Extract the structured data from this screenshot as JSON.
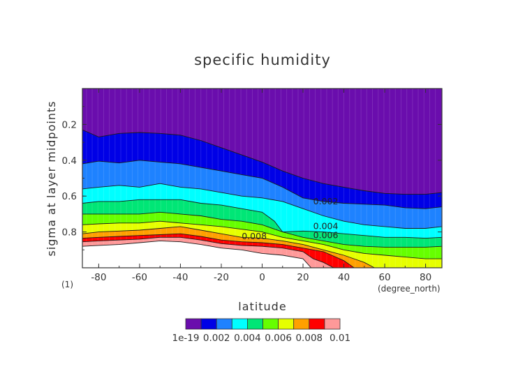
{
  "chart_data": {
    "type": "contour",
    "title": "specific humidity",
    "xlabel": "latitude",
    "ylabel": "sigma at layer midpoints",
    "x_units": "(degree_north)",
    "y_units": "(1)",
    "xlim": [
      -88,
      88
    ],
    "ylim": [
      0.0,
      1.0
    ],
    "y_inverted": true,
    "x_ticks": [
      -80,
      -60,
      -40,
      -20,
      0,
      20,
      40,
      60,
      80
    ],
    "y_ticks": [
      0.2,
      0.4,
      0.6,
      0.8
    ],
    "x_tick_labels": [
      "-80",
      "-60",
      "-40",
      "-20",
      "0",
      "20",
      "40",
      "60",
      "80"
    ],
    "y_tick_labels": [
      "0.2",
      "0.4",
      "0.6",
      "0.8"
    ],
    "contour_levels": [
      1e-19,
      0.001,
      0.002,
      0.003,
      0.004,
      0.005,
      0.006,
      0.007,
      0.008,
      0.009,
      0.01
    ],
    "colors": [
      "#6a0dad",
      "#0000e6",
      "#1e82ff",
      "#00ffff",
      "#00e676",
      "#66ff00",
      "#e6ff00",
      "#ffa000",
      "#ff0000",
      "#ff9999"
    ],
    "colorbar_labels": [
      "1e-19",
      "0.002",
      "0.004",
      "0.006",
      "0.008",
      "0.01"
    ],
    "contour_labels": [
      {
        "text": "0.002",
        "lat": 25,
        "sigma": 0.645
      },
      {
        "text": "0.004",
        "lat": 25,
        "sigma": 0.785
      },
      {
        "text": "0.006",
        "lat": 25,
        "sigma": 0.835
      },
      {
        "text": "0.008",
        "lat": -10,
        "sigma": 0.84
      }
    ],
    "contour_lines": [
      {
        "level": 0.001,
        "points": [
          [
            -88,
            0.23
          ],
          [
            -80,
            0.27
          ],
          [
            -70,
            0.25
          ],
          [
            -60,
            0.245
          ],
          [
            -50,
            0.25
          ],
          [
            -40,
            0.26
          ],
          [
            -30,
            0.29
          ],
          [
            -20,
            0.33
          ],
          [
            -10,
            0.37
          ],
          [
            0,
            0.41
          ],
          [
            10,
            0.46
          ],
          [
            20,
            0.5
          ],
          [
            30,
            0.53
          ],
          [
            40,
            0.55
          ],
          [
            50,
            0.57
          ],
          [
            60,
            0.585
          ],
          [
            70,
            0.59
          ],
          [
            80,
            0.59
          ],
          [
            88,
            0.58
          ]
        ]
      },
      {
        "level": 0.002,
        "points": [
          [
            -88,
            0.42
          ],
          [
            -80,
            0.405
          ],
          [
            -70,
            0.415
          ],
          [
            -60,
            0.4
          ],
          [
            -50,
            0.41
          ],
          [
            -40,
            0.42
          ],
          [
            -30,
            0.44
          ],
          [
            -20,
            0.46
          ],
          [
            -10,
            0.48
          ],
          [
            0,
            0.5
          ],
          [
            10,
            0.55
          ],
          [
            20,
            0.61
          ],
          [
            30,
            0.63
          ],
          [
            40,
            0.64
          ],
          [
            50,
            0.645
          ],
          [
            60,
            0.65
          ],
          [
            70,
            0.665
          ],
          [
            80,
            0.67
          ],
          [
            88,
            0.66
          ]
        ]
      },
      {
        "level": 0.003,
        "points": [
          [
            -88,
            0.56
          ],
          [
            -80,
            0.55
          ],
          [
            -70,
            0.54
          ],
          [
            -60,
            0.55
          ],
          [
            -50,
            0.53
          ],
          [
            -40,
            0.55
          ],
          [
            -30,
            0.56
          ],
          [
            -20,
            0.58
          ],
          [
            -10,
            0.6
          ],
          [
            0,
            0.61
          ],
          [
            10,
            0.63
          ],
          [
            20,
            0.67
          ],
          [
            30,
            0.71
          ],
          [
            40,
            0.74
          ],
          [
            50,
            0.76
          ],
          [
            60,
            0.77
          ],
          [
            70,
            0.78
          ],
          [
            80,
            0.78
          ],
          [
            88,
            0.77
          ]
        ]
      },
      {
        "level": 0.004,
        "points": [
          [
            -88,
            0.64
          ],
          [
            -80,
            0.63
          ],
          [
            -70,
            0.63
          ],
          [
            -60,
            0.62
          ],
          [
            -50,
            0.62
          ],
          [
            -40,
            0.62
          ],
          [
            -30,
            0.64
          ],
          [
            -20,
            0.65
          ],
          [
            -10,
            0.67
          ],
          [
            0,
            0.69
          ],
          [
            6,
            0.74
          ],
          [
            10,
            0.8
          ],
          [
            20,
            0.795
          ],
          [
            30,
            0.8
          ],
          [
            40,
            0.81
          ],
          [
            50,
            0.82
          ],
          [
            60,
            0.83
          ],
          [
            70,
            0.83
          ],
          [
            80,
            0.835
          ],
          [
            88,
            0.83
          ]
        ]
      },
      {
        "level": 0.005,
        "points": [
          [
            -88,
            0.7
          ],
          [
            -80,
            0.7
          ],
          [
            -70,
            0.7
          ],
          [
            -60,
            0.7
          ],
          [
            -50,
            0.69
          ],
          [
            -40,
            0.7
          ],
          [
            -30,
            0.71
          ],
          [
            -20,
            0.73
          ],
          [
            -10,
            0.74
          ],
          [
            0,
            0.76
          ],
          [
            10,
            0.8
          ],
          [
            20,
            0.83
          ],
          [
            30,
            0.85
          ],
          [
            40,
            0.87
          ],
          [
            50,
            0.88
          ],
          [
            60,
            0.885
          ],
          [
            70,
            0.885
          ],
          [
            80,
            0.885
          ],
          [
            88,
            0.88
          ]
        ]
      },
      {
        "level": 0.006,
        "points": [
          [
            -88,
            0.76
          ],
          [
            -80,
            0.755
          ],
          [
            -70,
            0.75
          ],
          [
            -60,
            0.75
          ],
          [
            -50,
            0.74
          ],
          [
            -40,
            0.75
          ],
          [
            -30,
            0.76
          ],
          [
            -20,
            0.77
          ],
          [
            -10,
            0.785
          ],
          [
            0,
            0.8
          ],
          [
            10,
            0.83
          ],
          [
            20,
            0.85
          ],
          [
            30,
            0.87
          ],
          [
            40,
            0.9
          ],
          [
            50,
            0.92
          ],
          [
            60,
            0.93
          ],
          [
            70,
            0.94
          ],
          [
            80,
            0.95
          ],
          [
            88,
            0.95
          ]
        ]
      },
      {
        "level": 0.007,
        "points": [
          [
            -88,
            0.81
          ],
          [
            -80,
            0.8
          ],
          [
            -70,
            0.795
          ],
          [
            -60,
            0.79
          ],
          [
            -50,
            0.78
          ],
          [
            -40,
            0.77
          ],
          [
            -30,
            0.79
          ],
          [
            -20,
            0.81
          ],
          [
            -10,
            0.83
          ],
          [
            0,
            0.835
          ],
          [
            10,
            0.85
          ],
          [
            20,
            0.87
          ],
          [
            30,
            0.9
          ],
          [
            40,
            0.93
          ],
          [
            50,
            0.97
          ],
          [
            55,
            1.0
          ]
        ]
      },
      {
        "level": 0.008,
        "points": [
          [
            -88,
            0.835
          ],
          [
            -80,
            0.83
          ],
          [
            -70,
            0.825
          ],
          [
            -60,
            0.82
          ],
          [
            -50,
            0.815
          ],
          [
            -40,
            0.81
          ],
          [
            -30,
            0.825
          ],
          [
            -20,
            0.845
          ],
          [
            -10,
            0.855
          ],
          [
            0,
            0.86
          ],
          [
            10,
            0.87
          ],
          [
            20,
            0.89
          ],
          [
            30,
            0.91
          ],
          [
            40,
            0.96
          ],
          [
            45,
            1.0
          ]
        ]
      },
      {
        "level": 0.009,
        "points": [
          [
            -88,
            0.855
          ],
          [
            -80,
            0.85
          ],
          [
            -70,
            0.845
          ],
          [
            -60,
            0.84
          ],
          [
            -50,
            0.83
          ],
          [
            -40,
            0.83
          ],
          [
            -30,
            0.845
          ],
          [
            -20,
            0.865
          ],
          [
            -10,
            0.875
          ],
          [
            0,
            0.88
          ],
          [
            10,
            0.89
          ],
          [
            20,
            0.91
          ],
          [
            25,
            0.95
          ],
          [
            30,
            0.97
          ],
          [
            35,
            1.0
          ]
        ]
      },
      {
        "level": 0.01,
        "points": [
          [
            -88,
            0.88
          ],
          [
            -80,
            0.875
          ],
          [
            -70,
            0.87
          ],
          [
            -60,
            0.86
          ],
          [
            -50,
            0.85
          ],
          [
            -40,
            0.855
          ],
          [
            -30,
            0.87
          ],
          [
            -20,
            0.89
          ],
          [
            -10,
            0.9
          ],
          [
            0,
            0.92
          ],
          [
            10,
            0.93
          ],
          [
            20,
            0.95
          ],
          [
            24,
            1.0
          ]
        ]
      }
    ]
  }
}
